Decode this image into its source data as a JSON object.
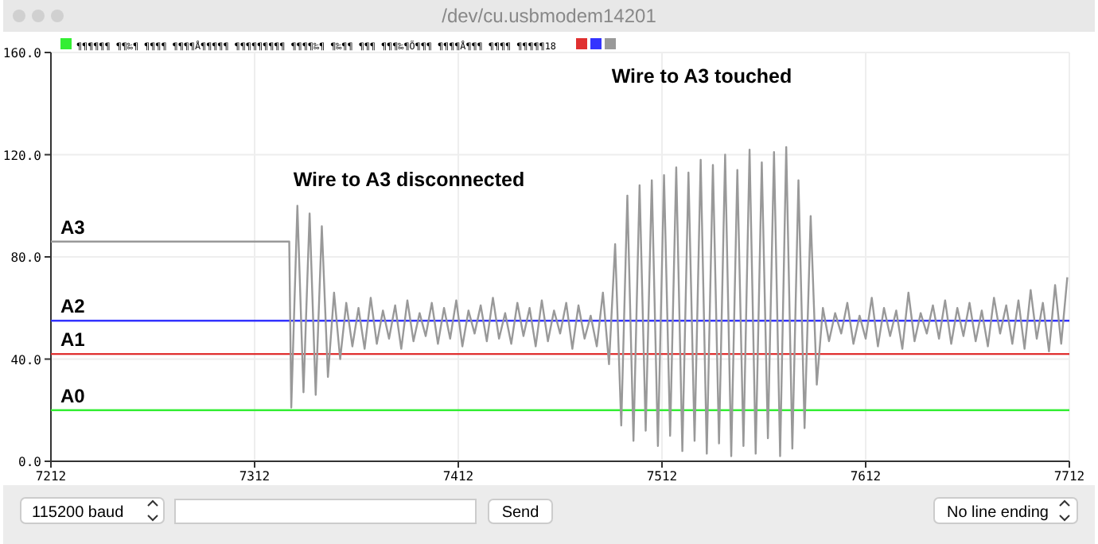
{
  "chart_data": {
    "type": "line",
    "title": "/dev/cu.usbmodem14201",
    "xlim": [
      7212,
      7712
    ],
    "xticks": [
      7212,
      7312,
      7412,
      7512,
      7612,
      7712
    ],
    "ylim": [
      0,
      160
    ],
    "yticks": [
      {
        "value": 0,
        "label": "0.0"
      },
      {
        "value": 40,
        "label": "40.0"
      },
      {
        "value": 80,
        "label": "80.0"
      },
      {
        "value": 120,
        "label": "120.0"
      },
      {
        "value": 160,
        "label": "160.0"
      }
    ],
    "grid": true,
    "marker": "none",
    "line_style": "solid",
    "series": [
      {
        "name": "A0",
        "color": "#33ee33",
        "x": [
          7212,
          7712
        ],
        "values": [
          20,
          20
        ]
      },
      {
        "name": "A1",
        "color": "#e03030",
        "x": [
          7212,
          7712
        ],
        "values": [
          42,
          42
        ]
      },
      {
        "name": "A2",
        "color": "#3333ff",
        "x": [
          7212,
          7712
        ],
        "values": [
          55,
          55
        ]
      },
      {
        "name": "A3",
        "color": "#999999",
        "x": [
          7212,
          7329,
          7330,
          7333,
          7336,
          7339,
          7342,
          7345,
          7348,
          7351,
          7354,
          7357,
          7360,
          7363,
          7366,
          7369,
          7372,
          7375,
          7378,
          7381,
          7384,
          7387,
          7390,
          7393,
          7396,
          7399,
          7402,
          7405,
          7408,
          7411,
          7414,
          7417,
          7420,
          7423,
          7426,
          7429,
          7432,
          7435,
          7438,
          7441,
          7444,
          7447,
          7450,
          7453,
          7456,
          7459,
          7462,
          7465,
          7468,
          7471,
          7474,
          7477,
          7480,
          7483,
          7486,
          7489,
          7492,
          7495,
          7498,
          7501,
          7504,
          7507,
          7510,
          7513,
          7516,
          7519,
          7522,
          7525,
          7528,
          7531,
          7534,
          7537,
          7540,
          7543,
          7546,
          7549,
          7552,
          7555,
          7558,
          7561,
          7564,
          7567,
          7570,
          7573,
          7576,
          7579,
          7582,
          7585,
          7588,
          7591,
          7594,
          7597,
          7600,
          7603,
          7606,
          7609,
          7612,
          7615,
          7618,
          7621,
          7624,
          7627,
          7630,
          7633,
          7636,
          7639,
          7642,
          7645,
          7648,
          7651,
          7654,
          7657,
          7660,
          7663,
          7666,
          7669,
          7672,
          7675,
          7678,
          7681,
          7684,
          7687,
          7690,
          7693,
          7696,
          7699,
          7702,
          7705,
          7708,
          7711
        ],
        "values": [
          86,
          86,
          21,
          100,
          27,
          97,
          26,
          92,
          33,
          66,
          40,
          62,
          45,
          60,
          44,
          64,
          46,
          59,
          48,
          61,
          44,
          63,
          47,
          58,
          49,
          62,
          46,
          60,
          48,
          63,
          45,
          59,
          50,
          61,
          47,
          64,
          48,
          58,
          46,
          62,
          49,
          60,
          45,
          63,
          47,
          59,
          50,
          62,
          44,
          61,
          48,
          57,
          45,
          66,
          38,
          85,
          14,
          104,
          8,
          108,
          12,
          110,
          6,
          112,
          10,
          115,
          4,
          113,
          8,
          118,
          3,
          116,
          7,
          120,
          2,
          114,
          6,
          122,
          3,
          117,
          9,
          121,
          2,
          123,
          5,
          110,
          13,
          96,
          30,
          60,
          47,
          58,
          50,
          62,
          46,
          57,
          48,
          64,
          45,
          60,
          49,
          59,
          44,
          66,
          47,
          58,
          50,
          61,
          48,
          63,
          46,
          60,
          49,
          62,
          47,
          59,
          45,
          64,
          50,
          61,
          46,
          63,
          44,
          67,
          48,
          62,
          43,
          69,
          46,
          72
        ]
      }
    ],
    "annotations": [
      "Wire to A3 disconnected",
      "Wire to A3 touched",
      "¶¶¶¶¶¶ ¶¶‰¶ ¶¶¶¶ ¶¶¶¶Å¶¶¶¶¶ ¶¶¶¶¶¶¶¶¶ ¶¶¶¶‰¶ ¶‰¶¶ ¶¶¶ ¶¶¶‰¶Õ¶¶¶ ¶¶¶¶Å¶¶¶ ¶¶¶¶ ¶¶¶¶¶18",
      "115200 baud",
      "Send",
      "No line ending"
    ]
  }
}
